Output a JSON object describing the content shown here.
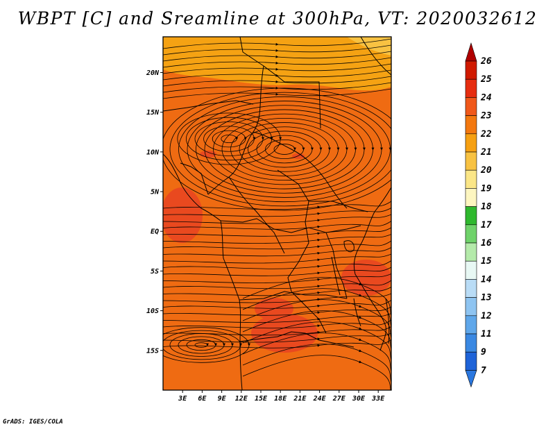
{
  "title": "WBPT [C] and Sreamline at 300hPa, VT: 2020032612",
  "credit": "GrADS: IGES/COLA",
  "map": {
    "lat_range": [
      -20,
      24.5
    ],
    "lon_range": [
      0,
      35
    ],
    "lat_ticks": [
      {
        "value": 20,
        "label": "20N"
      },
      {
        "value": 15,
        "label": "15N"
      },
      {
        "value": 10,
        "label": "10N"
      },
      {
        "value": 5,
        "label": "5N"
      },
      {
        "value": 0,
        "label": "EQ"
      },
      {
        "value": -5,
        "label": "5S"
      },
      {
        "value": -10,
        "label": "10S"
      },
      {
        "value": -15,
        "label": "15S"
      }
    ],
    "lon_ticks": [
      {
        "value": 3,
        "label": "3E"
      },
      {
        "value": 6,
        "label": "6E"
      },
      {
        "value": 9,
        "label": "9E"
      },
      {
        "value": 12,
        "label": "12E"
      },
      {
        "value": 15,
        "label": "15E"
      },
      {
        "value": 18,
        "label": "18E"
      },
      {
        "value": 21,
        "label": "21E"
      },
      {
        "value": 24,
        "label": "24E"
      },
      {
        "value": 27,
        "label": "27E"
      },
      {
        "value": 30,
        "label": "30E"
      },
      {
        "value": 33,
        "label": "33E"
      }
    ],
    "field_colors": {
      "cool": "#f5a213",
      "base": "#ef6b12",
      "warm": "#e9491f"
    }
  },
  "colorbar": {
    "levels": [
      {
        "label": "26",
        "color": "#b00000"
      },
      {
        "label": "25",
        "color": "#d01a00"
      },
      {
        "label": "24",
        "color": "#e62d10"
      },
      {
        "label": "23",
        "color": "#f0581a"
      },
      {
        "label": "22",
        "color": "#f3780f"
      },
      {
        "label": "21",
        "color": "#f6a012"
      },
      {
        "label": "20",
        "color": "#f8c242"
      },
      {
        "label": "19",
        "color": "#fbe687"
      },
      {
        "label": "18",
        "color": "#fdf6c0"
      },
      {
        "label": "17",
        "color": "#2fb82e"
      },
      {
        "label": "16",
        "color": "#6fd26a"
      },
      {
        "label": "15",
        "color": "#b4eaaa"
      },
      {
        "label": "14",
        "color": "#e8f8f4"
      },
      {
        "label": "13",
        "color": "#b9dcf6"
      },
      {
        "label": "12",
        "color": "#8ec4f1"
      },
      {
        "label": "11",
        "color": "#5fa7ea"
      },
      {
        "label": "9",
        "color": "#3a88e2"
      },
      {
        "label": "7",
        "color": "#1e63d8"
      }
    ],
    "bottom_color": "#2a77df"
  }
}
